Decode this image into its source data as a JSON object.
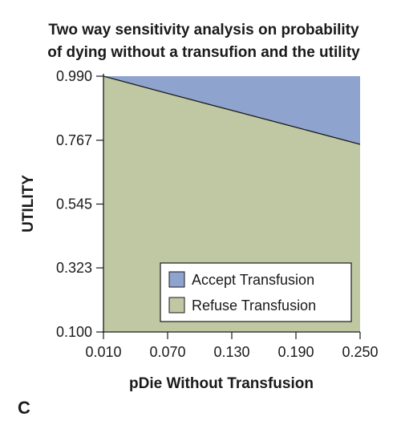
{
  "chart_data": {
    "type": "area",
    "title_lines": [
      "Two way sensitivity analysis on probability",
      "of dying without a transufion and the utility"
    ],
    "xlabel": "pDie Without Transfusion",
    "ylabel": "UTILITY",
    "panel_label": "C",
    "xlim": [
      0.01,
      0.25
    ],
    "ylim": [
      0.1,
      0.99
    ],
    "x_ticks": [
      "0.010",
      "0.070",
      "0.130",
      "0.190",
      "0.250"
    ],
    "y_ticks": [
      "0.990",
      "0.767",
      "0.545",
      "0.323",
      "0.100"
    ],
    "x_tick_values": [
      0.01,
      0.07,
      0.13,
      0.19,
      0.25
    ],
    "y_tick_values": [
      0.99,
      0.767,
      0.545,
      0.323,
      0.1
    ],
    "threshold_line": {
      "x": [
        0.01,
        0.07,
        0.13,
        0.19,
        0.25
      ],
      "y": [
        0.99,
        0.93,
        0.871,
        0.812,
        0.753
      ]
    },
    "series": [
      {
        "name": "Accept Transfusion",
        "region": "above",
        "color": "#8fa3cf"
      },
      {
        "name": "Refuse Transfusion",
        "region": "below",
        "color": "#c0c8a3"
      }
    ],
    "legend_position": "bottom-right",
    "grid": false
  }
}
